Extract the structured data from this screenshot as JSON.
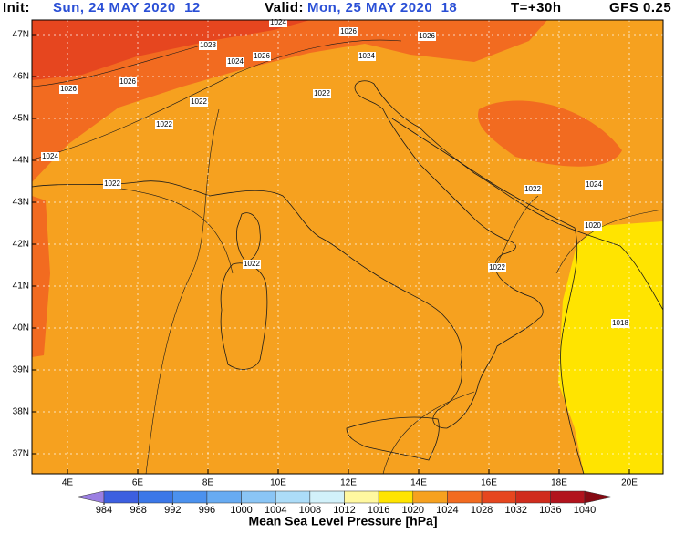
{
  "header": {
    "init_label": "Init:",
    "init": "Sun, 24 MAY 2020  12",
    "valid_label": "Valid:",
    "valid": "Mon, 25 MAY 2020  18",
    "step": "T=+30h",
    "model": "GFS 0.25"
  },
  "map": {
    "lat_labels": [
      "47N",
      "46N",
      "45N",
      "44N",
      "43N",
      "42N",
      "41N",
      "40N",
      "39N",
      "38N",
      "37N"
    ],
    "lon_labels": [
      "4E",
      "6E",
      "8E",
      "10E",
      "12E",
      "14E",
      "16E",
      "18E",
      "20E"
    ],
    "contour_labels": [
      "1024",
      "1026",
      "1026",
      "1028",
      "1024",
      "1026",
      "1024",
      "1026",
      "1026",
      "1022",
      "1022",
      "1022",
      "1024",
      "1022",
      "1022",
      "1024",
      "1020",
      "1022",
      "1022",
      "1018"
    ]
  },
  "colorbar": {
    "title": "Mean Sea Level Pressure [hPa]",
    "levels": [
      984,
      988,
      992,
      996,
      1000,
      1004,
      1008,
      1012,
      1016,
      1020,
      1024,
      1028,
      1032,
      1036,
      1040
    ],
    "colors": [
      "#9b7fe2",
      "#3d5fe0",
      "#3b77e8",
      "#4b91ee",
      "#67abf2",
      "#8ac5f5",
      "#acdcf8",
      "#d2f1fa",
      "#fff8a0",
      "#ffe400",
      "#f6a11f",
      "#f26b20",
      "#e6461f",
      "#d02c1d",
      "#b2131d",
      "#860a13"
    ]
  }
}
